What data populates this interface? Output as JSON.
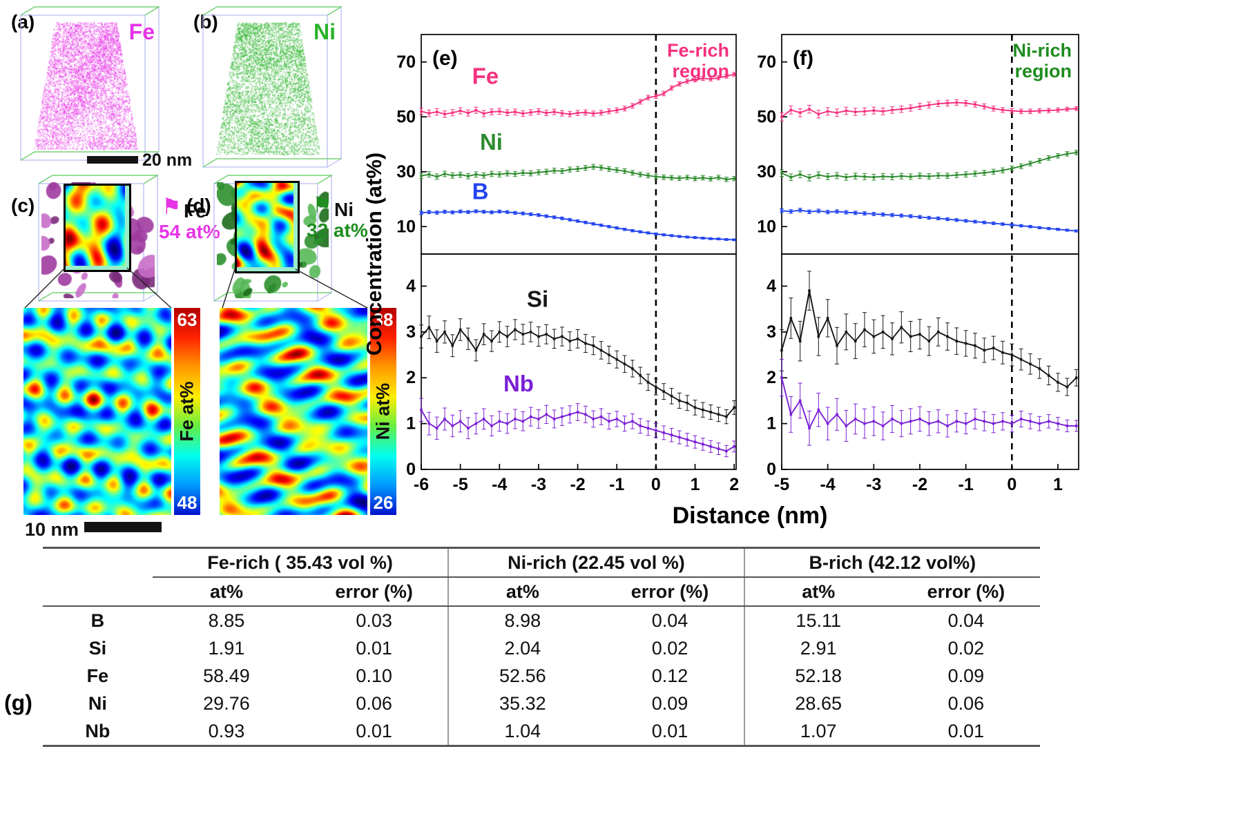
{
  "figure": {
    "panel_a": {
      "label": "(a)",
      "element": "Fe",
      "element_color": "#e733e7",
      "scalebar": "20 nm"
    },
    "panel_b": {
      "label": "(b)",
      "element": "Ni",
      "element_color": "#27b327"
    },
    "panel_c": {
      "label": "(c)",
      "legend_element": "Fe",
      "legend_conc": "54 at%",
      "legend_color": "#e733e7",
      "cbar_max": "63",
      "cbar_min": "48",
      "cbar_label": "Fe at%"
    },
    "panel_d": {
      "label": "(d)",
      "legend_element": "Ni",
      "legend_conc": "32 at%",
      "legend_color": "#1e8c1e",
      "cbar_max": "38",
      "cbar_min": "26",
      "cbar_label": "Ni at%"
    },
    "map_scalebar": "10 nm",
    "panel_g_label": "(g)",
    "icons": {
      "legend_c": "flag-icon",
      "legend_d": "flag-icon"
    },
    "colorbar_colors": [
      "#b30000",
      "#ff2200",
      "#ff9900",
      "#ffee00",
      "#66ee44",
      "#00ffee",
      "#0099ff",
      "#0011cc"
    ]
  },
  "axes": {
    "xlabel": "Distance (nm)",
    "ylabel": "Concentration (at%)"
  },
  "chart_data": [
    {
      "type": "line",
      "panel_label": "(e)",
      "region_label": "Fe-rich region",
      "region_color": "#f5317f",
      "xlim": [
        -6,
        2.05
      ],
      "xticks": [
        -6,
        -5,
        -4,
        -3,
        -2,
        -1,
        0,
        1,
        2
      ],
      "dashed_x": 0,
      "x0": -6,
      "dx": 0.2,
      "top": {
        "ylim": [
          0,
          80
        ],
        "yticks": [
          10,
          30,
          50,
          70
        ],
        "series": [
          {
            "name": "Fe",
            "color": "#f5317f",
            "err0": 1.2,
            "err1": 0.7,
            "label_xy": [
              -4.7,
              62
            ],
            "values": [
              52.0,
              51.3,
              51.8,
              51.0,
              51.5,
              52.2,
              51.4,
              52.4,
              51.2,
              51.8,
              52.0,
              51.5,
              51.8,
              51.2,
              51.6,
              52.0,
              51.4,
              51.8,
              51.3,
              51.0,
              51.4,
              51.6,
              51.2,
              51.5,
              52.0,
              52.4,
              53.0,
              54.0,
              55.5,
              57.0,
              57.5,
              58.5,
              60.5,
              62.0,
              63.0,
              63.5,
              64.0,
              63.8,
              64.2,
              64.8,
              65.5
            ]
          },
          {
            "name": "Ni",
            "color": "#2e8b2e",
            "err0": 1.0,
            "err1": 0.8,
            "label_xy": [
              -4.5,
              38
            ],
            "values": [
              28.5,
              29.0,
              28.2,
              29.2,
              28.6,
              28.9,
              28.4,
              29.0,
              28.6,
              29.2,
              29.0,
              29.4,
              29.2,
              29.6,
              29.4,
              29.8,
              30.0,
              30.4,
              30.2,
              30.8,
              31.0,
              31.4,
              31.8,
              31.5,
              31.0,
              30.6,
              30.2,
              29.6,
              29.0,
              28.6,
              28.2,
              28.0,
              27.8,
              27.6,
              27.9,
              27.5,
              27.8,
              27.4,
              27.9,
              27.2,
              27.5
            ]
          },
          {
            "name": "B",
            "color": "#2244ee",
            "err0": 0.6,
            "err1": 0.35,
            "label_xy": [
              -4.7,
              20
            ],
            "values": [
              15.0,
              15.3,
              15.1,
              15.4,
              15.2,
              15.5,
              15.3,
              15.6,
              15.4,
              15.2,
              15.5,
              15.3,
              15.0,
              14.8,
              14.5,
              14.2,
              13.8,
              13.4,
              13.0,
              12.5,
              12.0,
              11.5,
              11.0,
              10.5,
              10.0,
              9.5,
              9.0,
              8.5,
              8.1,
              7.7,
              7.3,
              7.0,
              6.7,
              6.4,
              6.2,
              6.0,
              5.8,
              5.6,
              5.5,
              5.3,
              5.2
            ]
          }
        ]
      },
      "bottom": {
        "ylim": [
          0,
          4.7
        ],
        "yticks": [
          0,
          1,
          2,
          3,
          4
        ],
        "series": [
          {
            "name": "Si",
            "color": "#151515",
            "err0": 0.25,
            "err1": 0.15,
            "label_xy": [
              -3.3,
              3.55
            ],
            "values": [
              2.9,
              3.1,
              2.8,
              3.0,
              2.7,
              3.05,
              2.85,
              2.6,
              2.95,
              2.8,
              3.0,
              2.9,
              3.05,
              2.95,
              3.0,
              2.9,
              2.95,
              2.85,
              2.9,
              2.8,
              2.85,
              2.75,
              2.7,
              2.6,
              2.5,
              2.4,
              2.3,
              2.2,
              2.05,
              1.9,
              1.8,
              1.7,
              1.6,
              1.5,
              1.45,
              1.35,
              1.3,
              1.25,
              1.2,
              1.15,
              1.35
            ]
          },
          {
            "name": "Nb",
            "color": "#7a1fd6",
            "err0": 0.25,
            "err1": 0.12,
            "label_xy": [
              -3.9,
              1.7
            ],
            "values": [
              1.3,
              1.0,
              0.9,
              1.1,
              0.95,
              1.05,
              0.9,
              1.0,
              1.1,
              0.95,
              1.05,
              1.0,
              1.1,
              1.05,
              1.15,
              1.1,
              1.2,
              1.1,
              1.15,
              1.2,
              1.25,
              1.2,
              1.1,
              1.15,
              1.05,
              1.1,
              1.0,
              1.05,
              0.95,
              0.9,
              0.85,
              0.8,
              0.75,
              0.7,
              0.65,
              0.6,
              0.55,
              0.5,
              0.45,
              0.4,
              0.5
            ]
          }
        ]
      }
    },
    {
      "type": "line",
      "panel_label": "(f)",
      "region_label": "Ni-rich region",
      "region_color": "#1e8c1e",
      "xlim": [
        -5,
        1.45
      ],
      "xticks": [
        -5,
        -4,
        -3,
        -2,
        -1,
        0,
        1
      ],
      "dashed_x": 0,
      "x0": -5,
      "dx": 0.2,
      "top": {
        "ylim": [
          0,
          80
        ],
        "yticks": [
          10,
          30,
          50,
          70
        ],
        "series": [
          {
            "name": "Fe",
            "color": "#f5317f",
            "err0": 1.5,
            "err1": 0.7,
            "label_xy": null,
            "values": [
              50.0,
              52.5,
              51.5,
              52.8,
              51.0,
              52.0,
              51.5,
              52.2,
              51.8,
              52.0,
              52.3,
              52.0,
              52.5,
              52.8,
              53.2,
              53.8,
              54.3,
              54.8,
              55.0,
              55.2,
              55.0,
              54.5,
              53.8,
              53.0,
              52.5,
              52.2,
              52.0,
              52.0,
              52.2,
              52.3,
              52.5,
              52.8,
              53.0
            ]
          },
          {
            "name": "Ni",
            "color": "#2e8b2e",
            "err0": 1.2,
            "err1": 0.8,
            "label_xy": null,
            "values": [
              29.5,
              28.0,
              29.0,
              27.8,
              28.8,
              28.2,
              28.6,
              28.0,
              28.4,
              28.2,
              28.0,
              28.3,
              28.1,
              28.4,
              28.2,
              28.5,
              28.3,
              28.6,
              28.5,
              28.8,
              29.0,
              29.3,
              29.6,
              30.0,
              30.5,
              31.2,
              32.0,
              33.0,
              34.0,
              35.0,
              35.8,
              36.5,
              37.0
            ]
          },
          {
            "name": "B",
            "color": "#2244ee",
            "err0": 0.7,
            "err1": 0.4,
            "label_xy": null,
            "values": [
              15.8,
              15.5,
              16.0,
              15.4,
              15.7,
              15.3,
              15.5,
              15.2,
              15.0,
              14.8,
              14.6,
              14.4,
              14.2,
              14.0,
              13.8,
              13.5,
              13.2,
              13.0,
              12.7,
              12.4,
              12.1,
              11.8,
              11.5,
              11.2,
              10.9,
              10.6,
              10.3,
              10.0,
              9.6,
              9.3,
              9.0,
              8.7,
              8.4
            ]
          }
        ]
      },
      "bottom": {
        "ylim": [
          0,
          4.7
        ],
        "yticks": [
          0,
          1,
          2,
          3,
          4
        ],
        "series": [
          {
            "name": "Si",
            "color": "#151515",
            "err0": 0.45,
            "err1": 0.18,
            "label_xy": null,
            "values": [
              2.6,
              3.3,
              2.8,
              3.9,
              2.9,
              3.3,
              2.7,
              3.0,
              2.8,
              3.05,
              2.9,
              3.0,
              2.85,
              3.1,
              2.9,
              2.95,
              2.8,
              3.0,
              2.9,
              2.8,
              2.75,
              2.7,
              2.6,
              2.65,
              2.55,
              2.5,
              2.4,
              2.3,
              2.2,
              2.05,
              1.9,
              1.8,
              2.0
            ]
          },
          {
            "name": "Nb",
            "color": "#7a1fd6",
            "err0": 0.4,
            "err1": 0.12,
            "label_xy": null,
            "values": [
              2.0,
              1.2,
              1.5,
              0.9,
              1.3,
              1.0,
              1.2,
              0.95,
              1.1,
              1.0,
              1.05,
              0.95,
              1.1,
              1.0,
              1.05,
              1.1,
              1.0,
              1.05,
              0.95,
              1.05,
              1.0,
              1.1,
              1.05,
              1.0,
              1.05,
              1.0,
              1.1,
              1.05,
              1.0,
              1.05,
              1.0,
              0.95,
              0.95
            ]
          }
        ]
      }
    }
  ],
  "table": {
    "groups": [
      "Fe-rich ( 35.43 vol %)",
      "Ni-rich (22.45 vol %)",
      "B-rich (42.12 vol%)"
    ],
    "subheaders": [
      "at%",
      "error (%)",
      "at%",
      "error (%)",
      "at%",
      "error (%)"
    ],
    "rows": [
      {
        "element": "B",
        "values": [
          "8.85",
          "0.03",
          "8.98",
          "0.04",
          "15.11",
          "0.04"
        ]
      },
      {
        "element": "Si",
        "values": [
          "1.91",
          "0.01",
          "2.04",
          "0.02",
          "2.91",
          "0.02"
        ]
      },
      {
        "element": "Fe",
        "values": [
          "58.49",
          "0.10",
          "52.56",
          "0.12",
          "52.18",
          "0.09"
        ]
      },
      {
        "element": "Ni",
        "values": [
          "29.76",
          "0.06",
          "35.32",
          "0.09",
          "28.65",
          "0.06"
        ]
      },
      {
        "element": "Nb",
        "values": [
          "0.93",
          "0.01",
          "1.04",
          "0.01",
          "1.07",
          "0.01"
        ]
      }
    ]
  }
}
